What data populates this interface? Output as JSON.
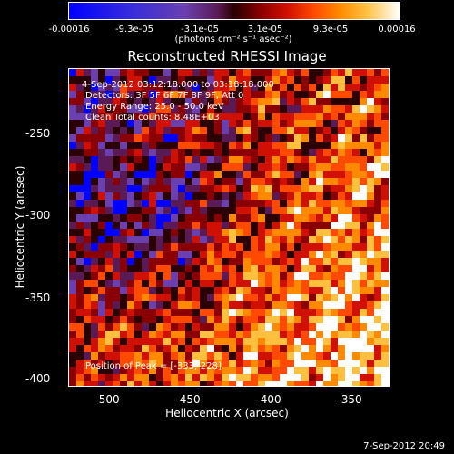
{
  "colorbar": {
    "ticks": [
      "-0.00016",
      "-9.3e-05",
      "-3.1e-05",
      "3.1e-05",
      "9.3e-05",
      "0.00016"
    ],
    "units": "(photons cm⁻² s⁻¹ asec⁻²)",
    "colormap": [
      "#0000ff",
      "#6a3fb0",
      "#5a1a55",
      "#2a0000",
      "#8a0000",
      "#d01000",
      "#ff4a00",
      "#ff8a00",
      "#ffc040",
      "#ffffff"
    ]
  },
  "title": "Reconstructed RHESSI Image",
  "annotations": {
    "time_range": "4-Sep-2012 03:12:18.000 to 03:18:18.000",
    "detectors": "Detectors: 3F 5F 6F 7F 8F 9F, Att 0",
    "energy_range": "Energy Range: 25.0 - 50.0 keV",
    "clean_counts": "Clean    Total counts: 8.48E+03",
    "peak_position": "Position of Peak = [-333,-228]"
  },
  "axes": {
    "xlabel": "Heliocentric X (arcsec)",
    "ylabel": "Heliocentric Y (arcsec)",
    "xticks": [
      "-500",
      "-450",
      "-400",
      "-350"
    ],
    "yticks": [
      "-250",
      "-300",
      "-350",
      "-400"
    ],
    "xlim": [
      -525,
      -325
    ],
    "ylim": [
      -402,
      -203
    ]
  },
  "footer": {
    "date": "7-Sep-2012 20:49"
  }
}
